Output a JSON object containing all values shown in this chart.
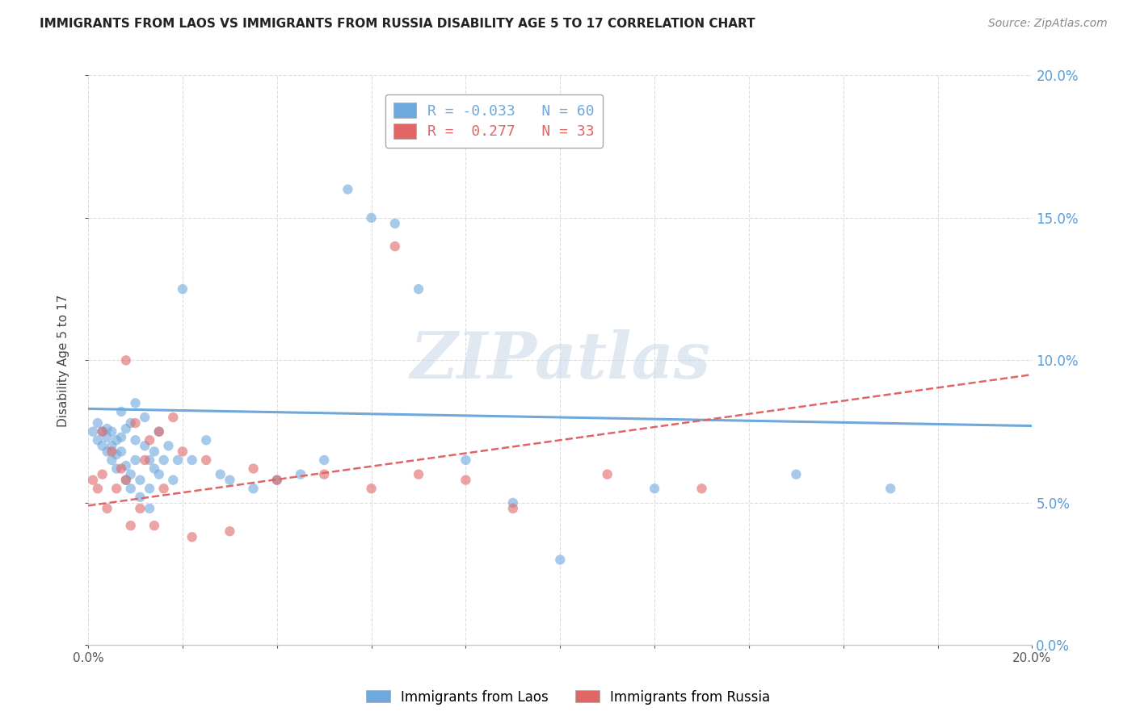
{
  "title": "IMMIGRANTS FROM LAOS VS IMMIGRANTS FROM RUSSIA DISABILITY AGE 5 TO 17 CORRELATION CHART",
  "source": "Source: ZipAtlas.com",
  "ylabel": "Disability Age 5 to 17",
  "xmin": 0.0,
  "xmax": 0.2,
  "ymin": 0.0,
  "ymax": 0.2,
  "watermark": "ZIPatlas",
  "right_axis_color": "#5b9bd5",
  "series": [
    {
      "name": "Immigrants from Laos",
      "color": "#6fa8dc",
      "R": -0.033,
      "N": 60,
      "x": [
        0.001,
        0.002,
        0.002,
        0.003,
        0.003,
        0.004,
        0.004,
        0.004,
        0.005,
        0.005,
        0.005,
        0.006,
        0.006,
        0.006,
        0.007,
        0.007,
        0.007,
        0.008,
        0.008,
        0.008,
        0.009,
        0.009,
        0.009,
        0.01,
        0.01,
        0.01,
        0.011,
        0.011,
        0.012,
        0.012,
        0.013,
        0.013,
        0.013,
        0.014,
        0.014,
        0.015,
        0.015,
        0.016,
        0.017,
        0.018,
        0.019,
        0.02,
        0.022,
        0.025,
        0.028,
        0.03,
        0.035,
        0.04,
        0.045,
        0.05,
        0.055,
        0.06,
        0.065,
        0.07,
        0.08,
        0.09,
        0.1,
        0.12,
        0.15,
        0.17
      ],
      "y": [
        0.075,
        0.072,
        0.078,
        0.07,
        0.075,
        0.068,
        0.073,
        0.076,
        0.065,
        0.07,
        0.075,
        0.062,
        0.067,
        0.072,
        0.068,
        0.073,
        0.082,
        0.058,
        0.063,
        0.076,
        0.055,
        0.06,
        0.078,
        0.065,
        0.072,
        0.085,
        0.052,
        0.058,
        0.07,
        0.08,
        0.048,
        0.055,
        0.065,
        0.062,
        0.068,
        0.06,
        0.075,
        0.065,
        0.07,
        0.058,
        0.065,
        0.125,
        0.065,
        0.072,
        0.06,
        0.058,
        0.055,
        0.058,
        0.06,
        0.065,
        0.16,
        0.15,
        0.148,
        0.125,
        0.065,
        0.05,
        0.03,
        0.055,
        0.06,
        0.055
      ],
      "trend_x": [
        0.0,
        0.2
      ],
      "trend_y": [
        0.083,
        0.077
      ],
      "trend_dash": false
    },
    {
      "name": "Immigrants from Russia",
      "color": "#e06666",
      "R": 0.277,
      "N": 33,
      "x": [
        0.001,
        0.002,
        0.003,
        0.003,
        0.004,
        0.005,
        0.006,
        0.007,
        0.008,
        0.008,
        0.009,
        0.01,
        0.011,
        0.012,
        0.013,
        0.014,
        0.015,
        0.016,
        0.018,
        0.02,
        0.022,
        0.025,
        0.03,
        0.035,
        0.04,
        0.05,
        0.06,
        0.065,
        0.07,
        0.08,
        0.09,
        0.11,
        0.13
      ],
      "y": [
        0.058,
        0.055,
        0.06,
        0.075,
        0.048,
        0.068,
        0.055,
        0.062,
        0.058,
        0.1,
        0.042,
        0.078,
        0.048,
        0.065,
        0.072,
        0.042,
        0.075,
        0.055,
        0.08,
        0.068,
        0.038,
        0.065,
        0.04,
        0.062,
        0.058,
        0.06,
        0.055,
        0.14,
        0.06,
        0.058,
        0.048,
        0.06,
        0.055
      ],
      "trend_x": [
        0.0,
        0.2
      ],
      "trend_y": [
        0.049,
        0.095
      ],
      "trend_dash": true
    }
  ]
}
